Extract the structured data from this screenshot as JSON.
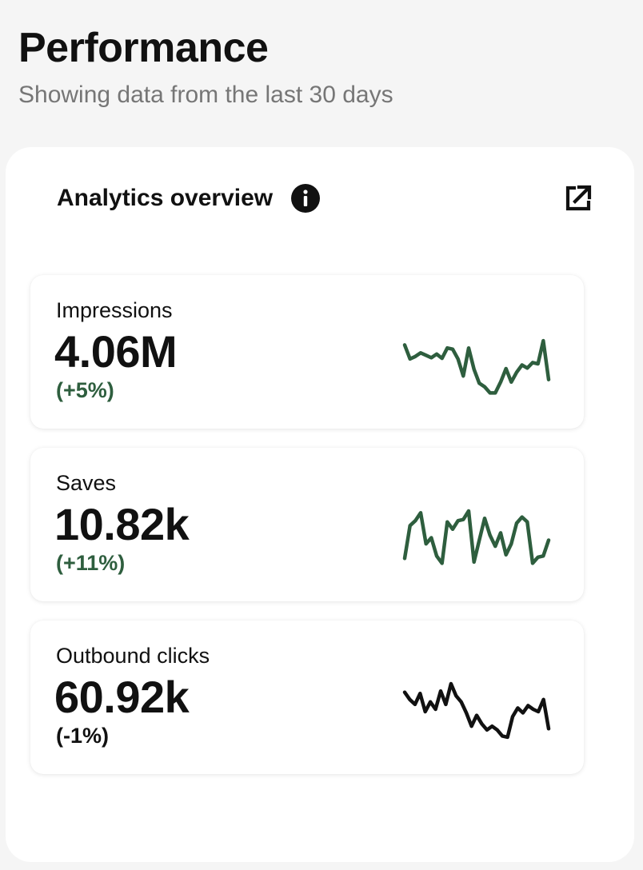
{
  "page": {
    "title": "Performance",
    "subtitle": "Showing data from the last 30 days"
  },
  "overview": {
    "title": "Analytics overview",
    "info_icon": "info-icon",
    "external_icon": "external-link-icon"
  },
  "metrics": [
    {
      "label": "Impressions",
      "value": "4.06M",
      "change": "(+5%)",
      "color": "#2e5e3e",
      "trend": [
        0.85,
        0.62,
        0.66,
        0.72,
        0.68,
        0.64,
        0.7,
        0.63,
        0.8,
        0.78,
        0.62,
        0.34,
        0.8,
        0.45,
        0.22,
        0.16,
        0.06,
        0.06,
        0.24,
        0.46,
        0.24,
        0.4,
        0.52,
        0.47,
        0.56,
        0.54,
        0.92,
        0.28
      ]
    },
    {
      "label": "Saves",
      "value": "10.82k",
      "change": "(+11%)",
      "color": "#2e5e3e",
      "trend": [
        0.18,
        0.72,
        0.8,
        0.93,
        0.42,
        0.52,
        0.22,
        0.1,
        0.78,
        0.66,
        0.8,
        0.82,
        0.96,
        0.12,
        0.48,
        0.84,
        0.56,
        0.38,
        0.6,
        0.24,
        0.42,
        0.76,
        0.86,
        0.78,
        0.1,
        0.2,
        0.22,
        0.48
      ]
    },
    {
      "label": "Outbound clicks",
      "value": "60.92k",
      "change": "(-1%)",
      "color": "#111111",
      "trend": [
        0.82,
        0.7,
        0.62,
        0.8,
        0.5,
        0.66,
        0.54,
        0.84,
        0.62,
        0.96,
        0.76,
        0.66,
        0.48,
        0.26,
        0.44,
        0.3,
        0.2,
        0.26,
        0.2,
        0.1,
        0.08,
        0.42,
        0.56,
        0.48,
        0.6,
        0.54,
        0.5,
        0.7,
        0.22
      ]
    }
  ]
}
